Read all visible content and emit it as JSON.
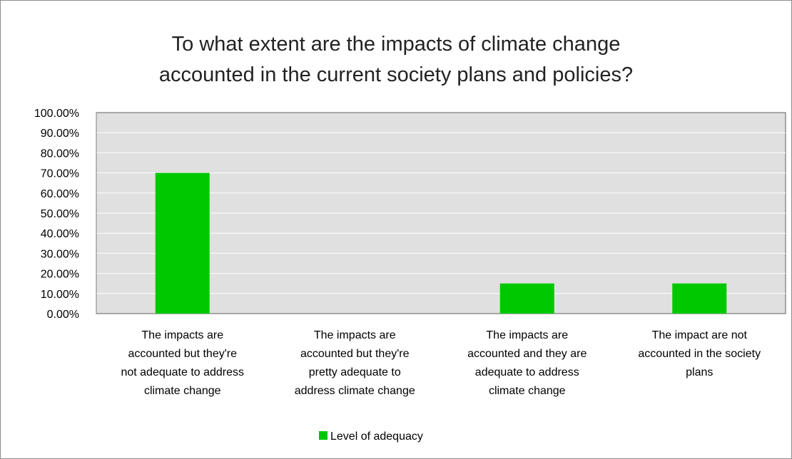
{
  "colors": {
    "bar": "#00c800",
    "plot_bg": "#e0e0e0",
    "grid": "#ffffff",
    "axis": "#7f7f7f"
  },
  "chart_data": {
    "type": "bar",
    "title_lines": [
      "To what extent are the impacts of climate change",
      "accounted in the current society plans and policies?"
    ],
    "categories": [
      [
        "The impacts are",
        "accounted but they're",
        "not adequate to address",
        "climate change"
      ],
      [
        "The impacts are",
        "accounted but they're",
        "pretty adequate to",
        "address climate change"
      ],
      [
        "The impacts are",
        "accounted and they are",
        "adequate to address",
        "climate change"
      ],
      [
        "The impact are not",
        "accounted in the society",
        "plans"
      ]
    ],
    "series": [
      {
        "name": "Level of adequacy",
        "values": [
          0.7,
          0.0,
          0.15,
          0.15
        ]
      }
    ],
    "y_ticks": [
      "0.00%",
      "10.00%",
      "20.00%",
      "30.00%",
      "40.00%",
      "50.00%",
      "60.00%",
      "70.00%",
      "80.00%",
      "90.00%",
      "100.00%"
    ],
    "ylim": [
      0,
      1
    ],
    "grid": true,
    "legend_position": "bottom"
  }
}
